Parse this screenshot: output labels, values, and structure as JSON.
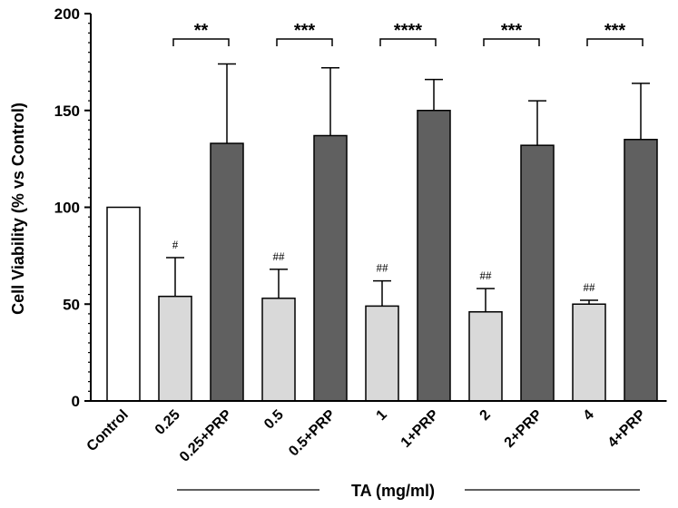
{
  "chart_data": {
    "type": "bar",
    "title": "",
    "xlabel": "",
    "ylabel": "Cell Viability (% vs Control)",
    "ylim": [
      0,
      200
    ],
    "yticks": [
      0,
      50,
      100,
      150,
      200
    ],
    "group_label": "TA (mg/ml)",
    "categories": [
      "Control",
      "0.25",
      "0.25+PRP",
      "0.5",
      "0.5+PRP",
      "1",
      "1+PRP",
      "2",
      "2+PRP",
      "4",
      "4+PRP"
    ],
    "values": [
      100,
      54,
      133,
      53,
      137,
      49,
      150,
      46,
      132,
      50,
      135
    ],
    "errors": [
      0,
      20,
      41,
      15,
      35,
      13,
      16,
      12,
      23,
      2,
      29
    ],
    "bar_colors": [
      "#ffffff",
      "#d9d9d9",
      "#606060",
      "#d9d9d9",
      "#606060",
      "#d9d9d9",
      "#606060",
      "#d9d9d9",
      "#606060",
      "#d9d9d9",
      "#606060"
    ],
    "hash_labels": [
      "",
      "#",
      "",
      "##",
      "",
      "##",
      "",
      "##",
      "",
      "##",
      ""
    ],
    "comparisons": [
      {
        "from": 1,
        "to": 2,
        "label": "**"
      },
      {
        "from": 3,
        "to": 4,
        "label": "***"
      },
      {
        "from": 5,
        "to": 6,
        "label": "****"
      },
      {
        "from": 7,
        "to": 8,
        "label": "***"
      },
      {
        "from": 9,
        "to": 10,
        "label": "***"
      }
    ]
  }
}
